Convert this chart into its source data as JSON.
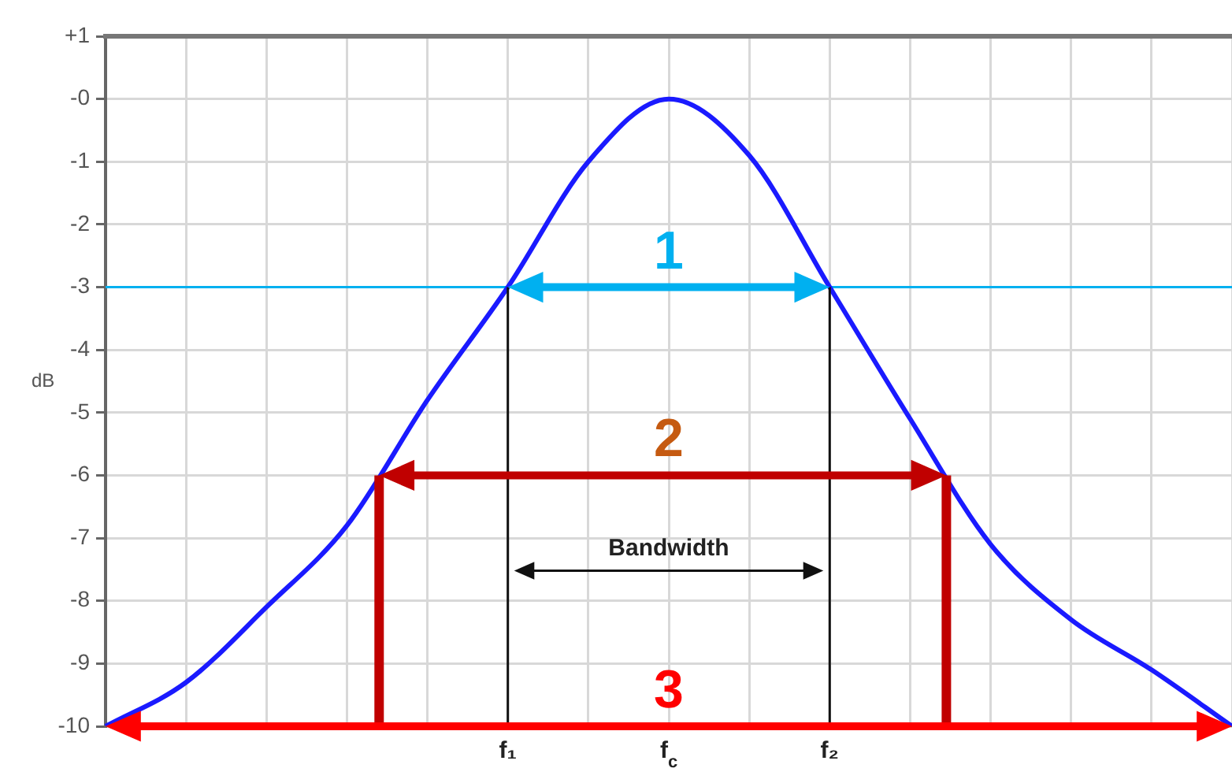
{
  "chart_data": {
    "type": "line",
    "ylabel": "dB",
    "categories": [
      null,
      null,
      null,
      null,
      null,
      "f₁",
      null,
      "f$_{c}$",
      null,
      "f₂",
      null,
      null,
      null,
      null,
      null
    ],
    "series": [
      {
        "color": "#1a1aff",
        "values": [
          -10,
          -9.3,
          -8.1,
          -6.8,
          -4.8,
          -3,
          -1,
          0,
          -0.9,
          -3,
          -5.1,
          -7.1,
          -8.3,
          -9.1,
          -10
        ]
      }
    ],
    "ylim": [
      -10,
      1
    ],
    "yticks": [
      {
        "value": 1,
        "label": "+1"
      },
      {
        "value": 0,
        "label": "-0"
      },
      -1,
      -2,
      -3,
      -4,
      -5,
      -6,
      -7,
      -8,
      -9,
      -10
    ],
    "grid": true,
    "ref_lines": [
      {
        "axis": "y",
        "value": -3,
        "color": "#00b0f0"
      },
      {
        "axis": "y",
        "value": -6,
        "color": "#c00000"
      },
      {
        "axis": "y",
        "value": -10,
        "color": "#ff0000"
      }
    ],
    "annotations": [
      "1",
      "2",
      "3",
      "Bandwidth"
    ]
  }
}
